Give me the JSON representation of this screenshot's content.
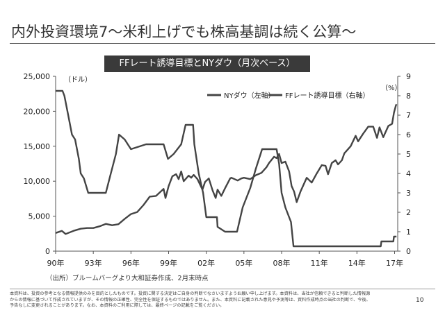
{
  "slide": {
    "title": "内外投資環境7～米利上げでも株高基調は続く公算～",
    "source_note": "（出所）ブルームバーグより大和証券作成、2月末時点",
    "disclaimer": "本資料は、投資の参考となる情報提供のみを目的としたものです。投資に関する決定はご自身の判断でなさいますようお願い申し上げます。本資料は、当社が信頼できると判断した情報源からの情報に基づいて作成されていますが、その情報の正確性、完全性を保証するものではありません。また、本資料に記載された意見や予測等は、資料作成時点の当社の判断で、今後、予告なしに変更されることがあります。なお、本資料のご利用に際しては、最終ページの記載をご覧ください。",
    "page_number": "10"
  },
  "chart_data": {
    "type": "line",
    "title": "FFレート誘導目標とNYダウ（月次ベース）",
    "y_left_unit": "（ドル）",
    "y_right_unit": "（%）",
    "ylim_left": [
      0,
      25000
    ],
    "ylim_right": [
      0,
      9
    ],
    "yticks_left": [
      "0",
      "5,000",
      "10,000",
      "15,000",
      "20,000",
      "25,000"
    ],
    "yticks_right": [
      "0",
      "1",
      "2",
      "3",
      "4",
      "5",
      "6",
      "7",
      "8",
      "9"
    ],
    "xlim": [
      1990.0,
      2017.25
    ],
    "xticks": [
      {
        "x": 1990,
        "label": "90年"
      },
      {
        "x": 1993,
        "label": "93年"
      },
      {
        "x": 1996,
        "label": "96年"
      },
      {
        "x": 1999,
        "label": "99年"
      },
      {
        "x": 2002,
        "label": "02年"
      },
      {
        "x": 2005,
        "label": "05年"
      },
      {
        "x": 2008,
        "label": "08年"
      },
      {
        "x": 2011,
        "label": "11年"
      },
      {
        "x": 2014,
        "label": "14年"
      },
      {
        "x": 2017,
        "label": "17年"
      }
    ],
    "grid": false,
    "legend_position": "top-right",
    "line_color": "#444444",
    "series": [
      {
        "name": "NYダウ（左軸）",
        "axis": "left",
        "points": [
          [
            1990.0,
            2600
          ],
          [
            1990.5,
            2900
          ],
          [
            1990.8,
            2450
          ],
          [
            1991.0,
            2600
          ],
          [
            1991.5,
            2950
          ],
          [
            1992.0,
            3200
          ],
          [
            1992.5,
            3300
          ],
          [
            1993.0,
            3300
          ],
          [
            1993.5,
            3550
          ],
          [
            1994.0,
            3900
          ],
          [
            1994.5,
            3700
          ],
          [
            1995.0,
            3850
          ],
          [
            1995.5,
            4600
          ],
          [
            1996.0,
            5300
          ],
          [
            1996.5,
            5600
          ],
          [
            1997.0,
            6600
          ],
          [
            1997.5,
            7800
          ],
          [
            1998.0,
            7900
          ],
          [
            1998.6,
            8900
          ],
          [
            1998.75,
            7600
          ],
          [
            1999.0,
            9300
          ],
          [
            1999.3,
            10700
          ],
          [
            1999.6,
            11000
          ],
          [
            1999.8,
            10300
          ],
          [
            2000.0,
            11400
          ],
          [
            2000.2,
            10000
          ],
          [
            2000.6,
            10800
          ],
          [
            2000.8,
            10500
          ],
          [
            2001.0,
            10900
          ],
          [
            2001.3,
            10300
          ],
          [
            2001.7,
            8800
          ],
          [
            2001.9,
            9900
          ],
          [
            2002.2,
            10400
          ],
          [
            2002.5,
            8700
          ],
          [
            2002.75,
            7600
          ],
          [
            2002.9,
            8800
          ],
          [
            2003.2,
            7900
          ],
          [
            2003.5,
            9000
          ],
          [
            2003.9,
            10400
          ],
          [
            2004.0,
            10500
          ],
          [
            2004.5,
            10100
          ],
          [
            2004.8,
            10400
          ],
          [
            2005.0,
            10500
          ],
          [
            2005.5,
            10300
          ],
          [
            2005.9,
            10800
          ],
          [
            2006.0,
            10900
          ],
          [
            2006.4,
            11200
          ],
          [
            2006.8,
            12000
          ],
          [
            2007.0,
            12600
          ],
          [
            2007.4,
            13500
          ],
          [
            2007.6,
            13300
          ],
          [
            2007.8,
            13900
          ],
          [
            2008.0,
            12600
          ],
          [
            2008.3,
            12800
          ],
          [
            2008.6,
            11400
          ],
          [
            2008.8,
            9300
          ],
          [
            2009.0,
            8500
          ],
          [
            2009.2,
            7000
          ],
          [
            2009.5,
            8500
          ],
          [
            2009.8,
            9700
          ],
          [
            2010.0,
            10500
          ],
          [
            2010.4,
            9800
          ],
          [
            2010.8,
            11100
          ],
          [
            2011.2,
            12300
          ],
          [
            2011.5,
            12200
          ],
          [
            2011.7,
            11000
          ],
          [
            2012.0,
            12600
          ],
          [
            2012.3,
            13000
          ],
          [
            2012.5,
            12400
          ],
          [
            2012.8,
            13000
          ],
          [
            2013.0,
            14000
          ],
          [
            2013.5,
            15000
          ],
          [
            2013.9,
            16500
          ],
          [
            2014.1,
            15700
          ],
          [
            2014.5,
            16800
          ],
          [
            2014.9,
            17800
          ],
          [
            2015.3,
            17800
          ],
          [
            2015.6,
            16200
          ],
          [
            2015.8,
            17700
          ],
          [
            2016.1,
            16300
          ],
          [
            2016.5,
            17900
          ],
          [
            2016.8,
            18200
          ],
          [
            2016.95,
            19800
          ],
          [
            2017.1,
            20800
          ],
          [
            2017.15,
            21000
          ]
        ]
      },
      {
        "name": "FFレート誘導目標（右軸）",
        "axis": "right",
        "points": [
          [
            1990.0,
            8.25
          ],
          [
            1990.55,
            8.25
          ],
          [
            1990.7,
            8.0
          ],
          [
            1991.0,
            7.0
          ],
          [
            1991.3,
            6.0
          ],
          [
            1991.55,
            5.75
          ],
          [
            1991.85,
            4.75
          ],
          [
            1992.0,
            4.0
          ],
          [
            1992.25,
            3.75
          ],
          [
            1992.6,
            3.0
          ],
          [
            1994.0,
            3.0
          ],
          [
            1994.4,
            4.0
          ],
          [
            1994.8,
            5.0
          ],
          [
            1995.05,
            6.0
          ],
          [
            1995.5,
            5.75
          ],
          [
            1996.0,
            5.25
          ],
          [
            1997.2,
            5.5
          ],
          [
            1998.6,
            5.5
          ],
          [
            1998.95,
            4.75
          ],
          [
            1999.4,
            5.0
          ],
          [
            2000.0,
            5.5
          ],
          [
            2000.35,
            6.5
          ],
          [
            2000.95,
            6.5
          ],
          [
            2001.05,
            5.5
          ],
          [
            2001.4,
            4.0
          ],
          [
            2001.75,
            3.0
          ],
          [
            2002.0,
            1.75
          ],
          [
            2002.85,
            1.75
          ],
          [
            2002.9,
            1.25
          ],
          [
            2003.5,
            1.0
          ],
          [
            2004.45,
            1.0
          ],
          [
            2004.9,
            2.25
          ],
          [
            2005.5,
            3.25
          ],
          [
            2005.95,
            4.25
          ],
          [
            2006.45,
            5.25
          ],
          [
            2007.6,
            5.25
          ],
          [
            2007.8,
            4.5
          ],
          [
            2008.0,
            3.0
          ],
          [
            2008.3,
            2.25
          ],
          [
            2008.75,
            1.5
          ],
          [
            2008.95,
            0.25
          ],
          [
            2015.9,
            0.25
          ],
          [
            2015.95,
            0.5
          ],
          [
            2016.9,
            0.5
          ],
          [
            2016.95,
            0.75
          ],
          [
            2017.15,
            0.75
          ]
        ]
      }
    ]
  }
}
